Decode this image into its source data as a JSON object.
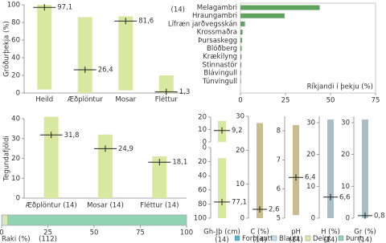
{
  "chart_data": [
    {
      "type": "range",
      "ylabel": "Gróðurþekja (%)",
      "annotation": "(14)",
      "categories": [
        "Heild",
        "Æðplöntur",
        "Mosar",
        "Fléttur"
      ],
      "min": [
        4,
        0,
        3,
        0
      ],
      "max": [
        100,
        86,
        87,
        20
      ],
      "values": [
        97.1,
        26.4,
        81.6,
        1.3
      ],
      "value_labels": [
        "97,1",
        "26,4",
        "81,6",
        "1,3"
      ],
      "ylim": [
        0,
        100
      ],
      "yticks": [
        0,
        20,
        40,
        60,
        80,
        100
      ],
      "color": "#d9e8a0"
    },
    {
      "type": "hbar",
      "xlabel": "Ríkjandi í þekju (%)",
      "categories": [
        "Melagambri",
        "Hraungambri",
        "Lífræn jarðvegsskán",
        "Krossmaðra",
        "Þursaskegg",
        "Blóðberg",
        "Krækilyng",
        "Stinnastör",
        "Blávingull",
        "Túnvingull"
      ],
      "values": [
        44,
        24.5,
        2.5,
        1.2,
        0.9,
        0.7,
        0.6,
        0.5,
        0.4,
        0.3
      ],
      "xlim": [
        0,
        75
      ],
      "xticks": [
        0,
        25,
        50,
        75
      ],
      "color": "#5ea35e"
    },
    {
      "type": "range",
      "ylabel": "Tegundafjöldi",
      "categories": [
        "Æðplöntur (14)",
        "Mosar (14)",
        "Fléttur (14)"
      ],
      "min": [
        0,
        0,
        0
      ],
      "max": [
        41,
        32,
        21
      ],
      "values": [
        31.8,
        24.9,
        18.1
      ],
      "value_labels": [
        "31,8",
        "24,9",
        "18,1"
      ],
      "ylim": [
        0,
        40
      ],
      "yticks": [
        0,
        10,
        20,
        30,
        40
      ],
      "color": "#d9e8a0"
    },
    {
      "type": "stacked",
      "xlabel": "Raki (%)",
      "annotation": "(112)",
      "series": [
        {
          "name": "Forblautt",
          "color": "#4fb3d1",
          "values": [
            0
          ]
        },
        {
          "name": "Blautt",
          "color": "#bde0ee",
          "values": [
            1
          ]
        },
        {
          "name": "Deigt",
          "color": "#dde9a6",
          "values": [
            2
          ]
        },
        {
          "name": "Þurrt",
          "color": "#8fd3b3",
          "values": [
            97
          ]
        }
      ],
      "xlim": [
        0,
        100
      ],
      "xticks": [
        0,
        25,
        50,
        75,
        100
      ]
    },
    {
      "type": "range",
      "categories": [
        null
      ],
      "min": [
        0
      ],
      "max": [
        17
      ],
      "values": [
        9.2
      ],
      "value_labels": [
        "9,2"
      ],
      "ylim": [
        0,
        20
      ],
      "yticks": [
        0,
        10,
        20
      ],
      "color": "#d9e8a0"
    },
    {
      "type": "range",
      "categories": [
        "Gh-Jþ (cm)"
      ],
      "n_labels": [
        "(14)"
      ],
      "min": [
        15
      ],
      "max": [
        100
      ],
      "values": [
        77.1
      ],
      "value_labels": [
        "77,1"
      ],
      "ylim": [
        0,
        100
      ],
      "y_inverted": true,
      "yticks": [
        0,
        20,
        40,
        60,
        80,
        100
      ],
      "color": "#d9e8a0"
    },
    {
      "type": "range",
      "categories": [
        "C (%)"
      ],
      "n_labels": [
        "(14)"
      ],
      "min": [
        0
      ],
      "max": [
        28
      ],
      "values": [
        2.6
      ],
      "value_labels": [
        "2,6"
      ],
      "ylim": [
        0,
        30
      ],
      "yticks": [
        0,
        10,
        20,
        30
      ],
      "color": "#c9bd8e"
    },
    {
      "type": "range",
      "categories": [
        "pH"
      ],
      "n_labels": [
        "(14)"
      ],
      "min": [
        5.1
      ],
      "max": [
        8.2
      ],
      "values": [
        6.4
      ],
      "value_labels": [
        "6,4"
      ],
      "ylim": [
        5,
        8.5
      ],
      "yticks": [
        5,
        6,
        7,
        8
      ],
      "color": "#c9bd8e"
    },
    {
      "type": "range",
      "categories": [
        "H (%)"
      ],
      "n_labels": [
        "(14)"
      ],
      "min": [
        0
      ],
      "max": [
        31
      ],
      "values": [
        6.6
      ],
      "value_labels": [
        "6,6"
      ],
      "ylim": [
        0,
        32
      ],
      "yticks": [
        0,
        10,
        20,
        30
      ],
      "color": "#a9bfc6"
    },
    {
      "type": "range",
      "categories": [
        "Gr (%)"
      ],
      "n_labels": [
        "(14)"
      ],
      "min": [
        0
      ],
      "max": [
        31
      ],
      "values": [
        0.8
      ],
      "value_labels": [
        "0,8"
      ],
      "ylim": [
        0,
        32
      ],
      "yticks": [
        0,
        10,
        20,
        30
      ],
      "color": "#a9bfc6"
    }
  ]
}
